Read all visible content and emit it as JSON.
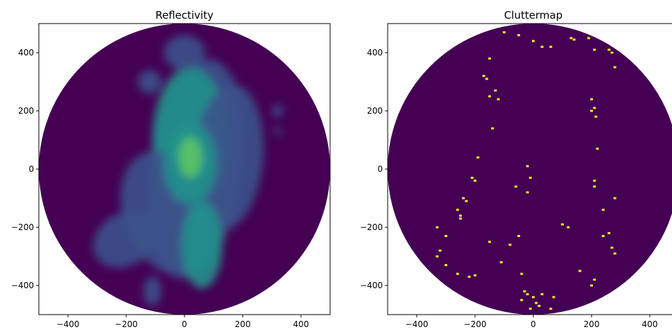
{
  "colors": {
    "background": "#440154",
    "frame": "#000000",
    "clutter": "#fde725",
    "echo_low": "#3b528b",
    "echo_mid": "#21918c",
    "echo_high": "#5ec962"
  },
  "chart_data": [
    {
      "type": "heatmap",
      "title": "Reflectivity",
      "xlabel": "",
      "ylabel": "",
      "xlim": [
        -500,
        500
      ],
      "ylim": [
        -500,
        500
      ],
      "xticks": [
        -400,
        -200,
        0,
        200,
        400
      ],
      "yticks": [
        400,
        200,
        0,
        -200,
        -400
      ],
      "tick_labels_x": [
        "−400",
        "−200",
        "0",
        "200",
        "400"
      ],
      "tick_labels_y": [
        "400",
        "200",
        "0",
        "−200",
        "−400"
      ],
      "radius": 500,
      "grid": false,
      "colormap": "viridis",
      "echo_blobs": [
        {
          "x": 40,
          "y": 0,
          "rx": 160,
          "ry": 380,
          "rot": 8,
          "level": "low"
        },
        {
          "x": 20,
          "y": 100,
          "rx": 130,
          "ry": 250,
          "rot": 0,
          "level": "mid"
        },
        {
          "x": -60,
          "y": -150,
          "rx": 150,
          "ry": 220,
          "rot": -20,
          "level": "low"
        },
        {
          "x": -200,
          "y": -240,
          "rx": 120,
          "ry": 90,
          "rot": -30,
          "level": "low"
        },
        {
          "x": 150,
          "y": 40,
          "rx": 120,
          "ry": 250,
          "rot": 5,
          "level": "low"
        },
        {
          "x": 20,
          "y": 20,
          "rx": 90,
          "ry": 140,
          "rot": 0,
          "level": "mid"
        },
        {
          "x": 20,
          "y": 40,
          "rx": 40,
          "ry": 70,
          "rot": 0,
          "level": "high"
        },
        {
          "x": 60,
          "y": -260,
          "rx": 70,
          "ry": 150,
          "rot": 0,
          "level": "mid"
        },
        {
          "x": 0,
          "y": 400,
          "rx": 70,
          "ry": 60,
          "rot": 0,
          "level": "low"
        },
        {
          "x": 320,
          "y": 200,
          "rx": 18,
          "ry": 20,
          "rot": 0,
          "level": "low"
        },
        {
          "x": 320,
          "y": 130,
          "rx": 10,
          "ry": 15,
          "rot": 0,
          "level": "low"
        },
        {
          "x": -120,
          "y": 300,
          "rx": 40,
          "ry": 40,
          "rot": 0,
          "level": "low"
        },
        {
          "x": -110,
          "y": -420,
          "rx": 30,
          "ry": 50,
          "rot": 0,
          "level": "low"
        }
      ]
    },
    {
      "type": "heatmap",
      "title": "Cluttermap",
      "xlabel": "",
      "ylabel": "",
      "xlim": [
        -500,
        500
      ],
      "ylim": [
        -500,
        500
      ],
      "xticks": [
        -400,
        -200,
        0,
        200,
        400
      ],
      "yticks": [
        400,
        200,
        0,
        -200,
        -400
      ],
      "tick_labels_x": [
        "−400",
        "−200",
        "0",
        "200",
        "400"
      ],
      "tick_labels_y": [
        "400",
        "200",
        "0",
        "−200",
        "−400"
      ],
      "radius": 500,
      "grid": false,
      "values_legend": "binary (0 = purple, 1 = yellow)",
      "clutter_points": [
        [
          -100,
          470
        ],
        [
          -50,
          460
        ],
        [
          0,
          440
        ],
        [
          30,
          420
        ],
        [
          60,
          420
        ],
        [
          130,
          450
        ],
        [
          140,
          445
        ],
        [
          190,
          450
        ],
        [
          210,
          410
        ],
        [
          260,
          410
        ],
        [
          270,
          400
        ],
        [
          280,
          350
        ],
        [
          -150,
          380
        ],
        [
          -170,
          320
        ],
        [
          -160,
          310
        ],
        [
          -130,
          270
        ],
        [
          -150,
          250
        ],
        [
          -120,
          240
        ],
        [
          200,
          240
        ],
        [
          210,
          210
        ],
        [
          200,
          200
        ],
        [
          215,
          180
        ],
        [
          -140,
          140
        ],
        [
          220,
          70
        ],
        [
          -190,
          40
        ],
        [
          -210,
          -30
        ],
        [
          -200,
          -40
        ],
        [
          -20,
          10
        ],
        [
          -10,
          -30
        ],
        [
          -60,
          -60
        ],
        [
          -20,
          -80
        ],
        [
          210,
          -40
        ],
        [
          210,
          -60
        ],
        [
          -240,
          -100
        ],
        [
          -230,
          -110
        ],
        [
          280,
          -100
        ],
        [
          -260,
          -140
        ],
        [
          -250,
          -160
        ],
        [
          -250,
          -170
        ],
        [
          240,
          -140
        ],
        [
          -330,
          -200
        ],
        [
          -300,
          -230
        ],
        [
          -320,
          -280
        ],
        [
          -330,
          -300
        ],
        [
          -150,
          -250
        ],
        [
          -80,
          -260
        ],
        [
          100,
          -190
        ],
        [
          120,
          -200
        ],
        [
          -50,
          -230
        ],
        [
          240,
          -230
        ],
        [
          260,
          -220
        ],
        [
          270,
          -270
        ],
        [
          280,
          -290
        ],
        [
          -300,
          -330
        ],
        [
          -260,
          -360
        ],
        [
          -220,
          -370
        ],
        [
          -200,
          -365
        ],
        [
          -110,
          -320
        ],
        [
          -40,
          -360
        ],
        [
          160,
          -350
        ],
        [
          210,
          -380
        ],
        [
          200,
          -400
        ],
        [
          -30,
          -420
        ],
        [
          -20,
          -430
        ],
        [
          0,
          -440
        ],
        [
          -40,
          -450
        ],
        [
          10,
          -460
        ],
        [
          30,
          -430
        ],
        [
          60,
          -480
        ],
        [
          20,
          -470
        ],
        [
          -10,
          -480
        ],
        [
          70,
          -440
        ]
      ]
    }
  ]
}
